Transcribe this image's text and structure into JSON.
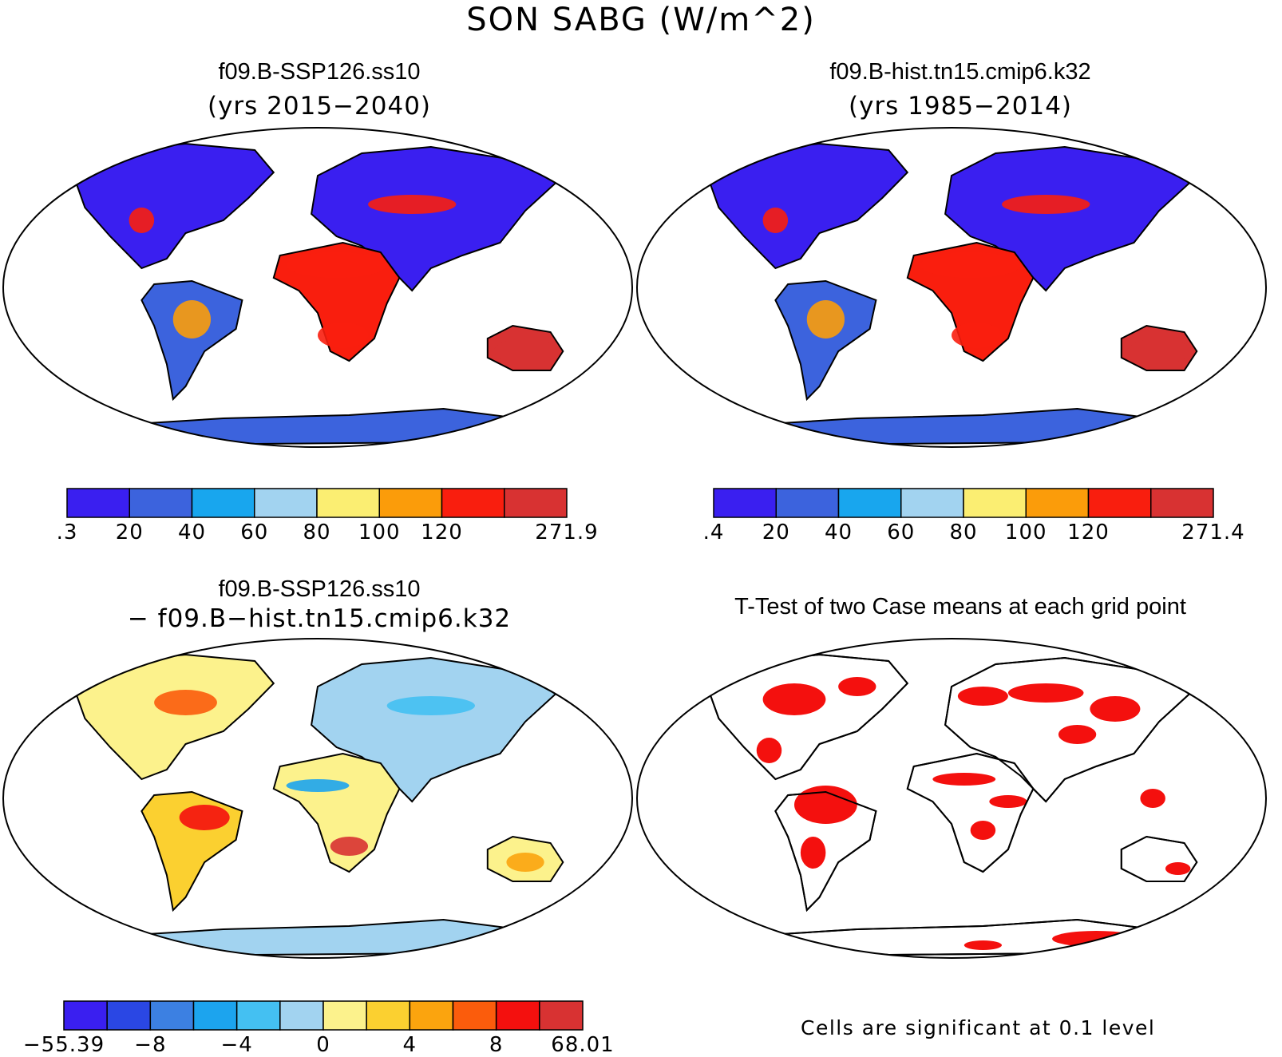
{
  "figure": {
    "title": "SON SABG (W/m^2)"
  },
  "panels": [
    {
      "id": "case",
      "title": "f09.B-SSP126.ss10",
      "subtitle": "(yrs 2015−2040)",
      "colors": [
        "#3a1ff0",
        "#3c63dd",
        "#18a6ee",
        "#a2d3f0",
        "#fbee72",
        "#fb9c0a",
        "#f91e0e",
        "#d83232"
      ],
      "colorbar_labels": [
        ".3",
        "20",
        "40",
        "60",
        "80",
        "100",
        "120",
        "271.9"
      ],
      "colorbar_label_slots": [
        0,
        1,
        2,
        3,
        4,
        5,
        6,
        8
      ]
    },
    {
      "id": "control",
      "title": "f09.B-hist.tn15.cmip6.k32",
      "subtitle": "(yrs 1985−2014)",
      "colors": [
        "#3a1ff0",
        "#3c63dd",
        "#18a6ee",
        "#a2d3f0",
        "#fbee72",
        "#fb9c0a",
        "#f91e0e",
        "#d83232"
      ],
      "colorbar_labels": [
        ".4",
        "20",
        "40",
        "60",
        "80",
        "100",
        "120",
        "271.4"
      ],
      "colorbar_label_slots": [
        0,
        1,
        2,
        3,
        4,
        5,
        6,
        8
      ]
    },
    {
      "id": "difference",
      "title": "f09.B-SSP126.ss10",
      "subtitle": "− f09.B−hist.tn15.cmip6.k32",
      "colors": [
        "#3a1ff0",
        "#2a47e4",
        "#3c80e2",
        "#1ca4ee",
        "#44c0f2",
        "#a2d3f0",
        "#fcf28c",
        "#fbd030",
        "#fba40e",
        "#fb5c0c",
        "#f4100e",
        "#d83232"
      ],
      "colorbar_labels": [
        "−55.39",
        "−8",
        "−4",
        "0",
        "4",
        "8",
        "68.01"
      ],
      "colorbar_label_slots": [
        0,
        2,
        4,
        6,
        8,
        10,
        12
      ]
    },
    {
      "id": "ttest",
      "title": "T-Test of two Case means at each grid point",
      "note": "Cells are significant at 0.1 level",
      "colors": [
        "#f4100e"
      ]
    }
  ]
}
